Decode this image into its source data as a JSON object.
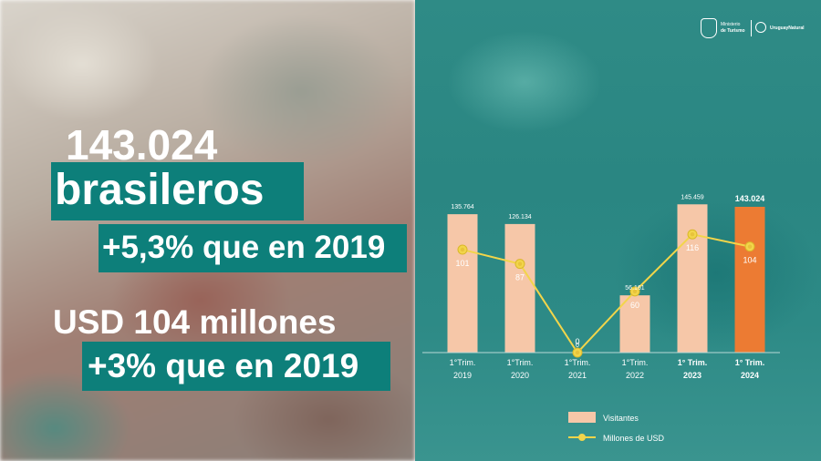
{
  "headline": {
    "count": "143.024",
    "nationality": "brasileros",
    "count_change": "+5,3% que en 2019",
    "spend": "USD 104 millones",
    "spend_change": "+3% que en 2019"
  },
  "logos": {
    "ministry_line1": "Ministerio",
    "ministry_line2": "de Turismo",
    "brand": "UruguayNatural"
  },
  "colors": {
    "bar": "#f6c7a8",
    "bar_highlight": "#ec7b33",
    "line": "#f2d54a",
    "highlight_box": "#0d7f7a"
  },
  "chart_data": {
    "type": "bar",
    "categories": [
      [
        "1°Trim.",
        "2019"
      ],
      [
        "1°Trim.",
        "2020"
      ],
      [
        "1°Trim.",
        "2021"
      ],
      [
        "1°Trim.",
        "2022"
      ],
      [
        "1° Trim.",
        "2023"
      ],
      [
        "1° Trim.",
        "2024"
      ]
    ],
    "bold_categories": [
      4,
      5
    ],
    "highlight_index": 5,
    "series": [
      {
        "name": "Visitantes",
        "type": "bar",
        "values": [
          135764,
          126134,
          0,
          56161,
          145459,
          143024
        ],
        "labels": [
          "135.764",
          "126.134",
          "0",
          "56.161",
          "145.459",
          "143.024"
        ]
      },
      {
        "name": "Millones de USD",
        "type": "line",
        "values": [
          101,
          87,
          0,
          60,
          116,
          104
        ],
        "labels": [
          "101",
          "87",
          "0",
          "60",
          "116",
          "104"
        ]
      }
    ],
    "ylim_bars": [
      0,
      160000
    ],
    "ylim_line": [
      0,
      160
    ],
    "legend_position": "bottom"
  }
}
